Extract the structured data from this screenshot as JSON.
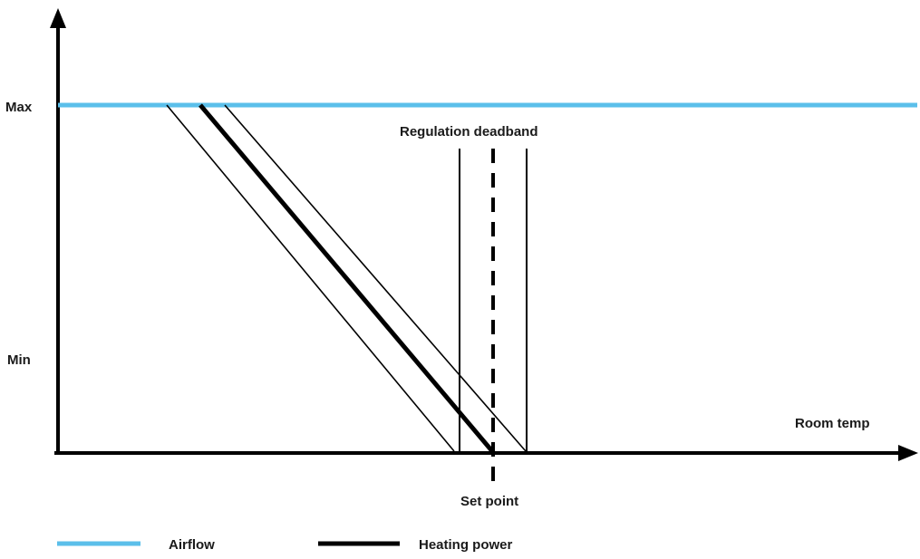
{
  "y_axis": {
    "max_label": "Max",
    "min_label": "Min"
  },
  "x_axis": {
    "label": "Room temp"
  },
  "annotations": {
    "deadband_label": "Regulation deadband",
    "setpoint_label": "Set point"
  },
  "legend": {
    "items": [
      {
        "label": "Airflow",
        "color": "#5bbfea"
      },
      {
        "label": "Heating power",
        "color": "#000000"
      }
    ]
  },
  "colors": {
    "airflow": "#5bbfea",
    "lines": "#000000"
  }
}
